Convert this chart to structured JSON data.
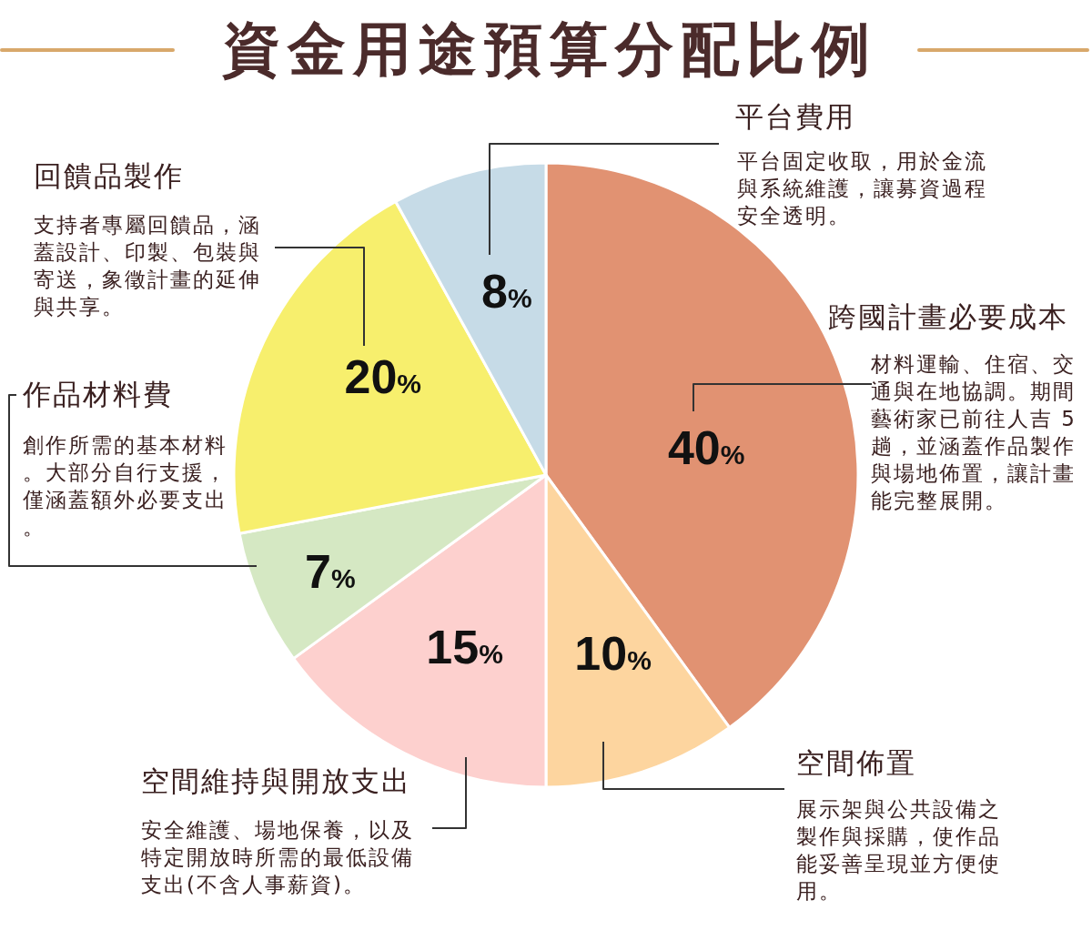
{
  "chart_data": {
    "type": "pie",
    "title": "資金用途預算分配比例",
    "categories": [
      "跨國計畫必要成本",
      "空間佈置",
      "空間維持與開放支出",
      "作品材料費",
      "回饋品製作",
      "平台費用"
    ],
    "values": [
      40,
      10,
      15,
      7,
      20,
      8
    ],
    "colors": [
      "#e19272",
      "#fdd59f",
      "#fdd0ce",
      "#d5e8c3",
      "#f7ef6d",
      "#c6dbe7"
    ],
    "value_labels": [
      "40%",
      "10%",
      "15%",
      "7%",
      "20%",
      "8%"
    ],
    "annotations": [
      "材料運輸、住宿、交通與在地協調。期間藝術家已前往人吉 5 趟，並涵蓋作品製作與場地佈置，讓計畫能完整展開。",
      "展示架與公共設備之製作與採購，使作品能妥善呈現並方便使用。",
      "安全維護、場地保養，以及特定開放時所需的最低設備支出(不含人事薪資)。",
      "創作所需的基本材料。大部分自行支援，僅涵蓋額外必要支出。",
      "支持者專屬回饋品，涵蓋設計、印製、包裝與寄送，象徵計畫的延伸與共享。",
      "平台固定收取，用於金流與系統維護，讓募資過程安全透明。"
    ]
  }
}
